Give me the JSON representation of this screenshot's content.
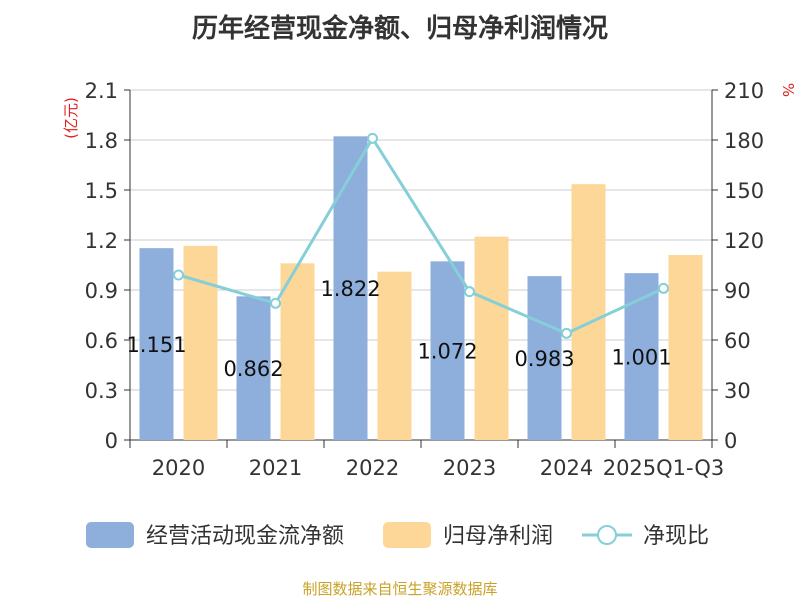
{
  "chart_data": {
    "type": "bar",
    "title": "历年经营现金净额、归母净利润情况",
    "categories": [
      "2020",
      "2021",
      "2022",
      "2023",
      "2024",
      "2025Q1-Q3"
    ],
    "y_left": {
      "label": "(亿元)",
      "ylim": [
        0,
        2.1
      ],
      "ticks": [
        "0",
        "0.3",
        "0.6",
        "0.9",
        "1.2",
        "1.5",
        "1.8",
        "2.1"
      ]
    },
    "y_right": {
      "label": "%",
      "ylim": [
        0,
        210
      ],
      "ticks": [
        "0",
        "30",
        "60",
        "90",
        "120",
        "150",
        "180",
        "210"
      ]
    },
    "series": [
      {
        "name": "经营活动现金流净额",
        "type": "bar",
        "axis": "left",
        "color": "#8eaedc",
        "values": [
          1.151,
          0.862,
          1.822,
          1.072,
          0.983,
          1.001
        ],
        "labels": [
          "1.151",
          "0.862",
          "1.822",
          "1.072",
          "0.983",
          "1.001"
        ]
      },
      {
        "name": "归母净利润",
        "type": "bar",
        "axis": "left",
        "color": "#fdd797",
        "values": [
          1.165,
          1.06,
          1.01,
          1.22,
          1.535,
          1.11
        ]
      },
      {
        "name": "净现比",
        "type": "line",
        "axis": "right",
        "color": "#85cfd8",
        "values": [
          99,
          82,
          181,
          89,
          64,
          91
        ]
      }
    ],
    "grid": true,
    "legend_position": "bottom"
  },
  "source": "制图数据来自恒生聚源数据库"
}
